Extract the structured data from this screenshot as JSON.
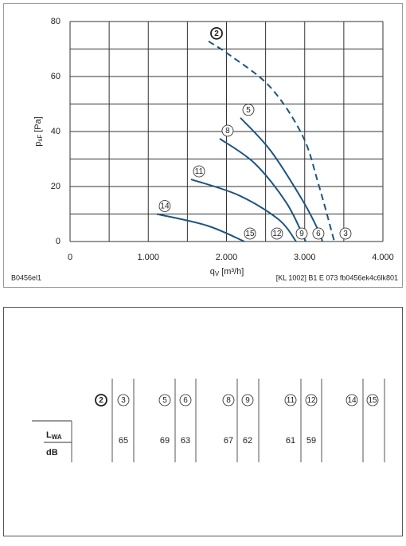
{
  "chart_data": {
    "type": "line",
    "ylabel": "p",
    "ylabel_sub": "sF",
    "ylabel_unit": "[Pa]",
    "xlabel": "q",
    "xlabel_sub": "V",
    "xlabel_unit": "[m³/h]",
    "note_left": "B0456el1",
    "note_right": "[KL 1002] B1 E 073 fb0456ek4c6lk801",
    "xlim": [
      0,
      4000
    ],
    "ylim": [
      0,
      80
    ],
    "xticks": [
      0,
      {
        "value": 1000,
        "label": "1.000"
      },
      {
        "value": 2000,
        "label": "2.000"
      },
      {
        "value": 3000,
        "label": "3.000"
      },
      {
        "value": 4000,
        "label": "4.000"
      }
    ],
    "yticks": [
      0,
      20,
      40,
      60,
      80
    ],
    "x_minor_grid": [
      500,
      1500,
      2500,
      3500
    ],
    "y_minor_grid": [
      10,
      30,
      50,
      70
    ],
    "grid": true,
    "series": [
      {
        "name": "2",
        "end_label": "3",
        "dashed": true,
        "color": "#1d5581",
        "x": [
          1771,
          2056,
          2565,
          2972,
          3175,
          3379
        ],
        "values": [
          72.8,
          67.5,
          56,
          38.5,
          21,
          0
        ]
      },
      {
        "name": "5",
        "end_label": "6",
        "dashed": false,
        "color": "#1d5581",
        "x": [
          2178,
          2565,
          2972,
          3175,
          3226
        ],
        "values": [
          45,
          33,
          15,
          4,
          0
        ]
      },
      {
        "name": "8",
        "end_label": "9",
        "dashed": false,
        "color": "#1d5581",
        "x": [
          1913,
          2361,
          2768,
          3013
        ],
        "values": [
          37.4,
          28.4,
          14,
          0
        ]
      },
      {
        "name": "11",
        "end_label": "12",
        "dashed": false,
        "color": "#1d5581",
        "x": [
          1547,
          2158,
          2667,
          2890
        ],
        "values": [
          22.6,
          16.8,
          8,
          0
        ]
      },
      {
        "name": "14",
        "end_label": "15",
        "dashed": false,
        "color": "#1d5581",
        "x": [
          1109,
          1751,
          2229
        ],
        "values": [
          10,
          5.8,
          0
        ]
      }
    ]
  },
  "table": {
    "columns": [
      "2",
      "3",
      "5",
      "6",
      "8",
      "9",
      "11",
      "12",
      "14",
      "15"
    ],
    "row_label": "L",
    "row_label_sub": "WA",
    "unit": "dB",
    "values": [
      null,
      65,
      69,
      63,
      67,
      62,
      61,
      59,
      null,
      null
    ]
  }
}
